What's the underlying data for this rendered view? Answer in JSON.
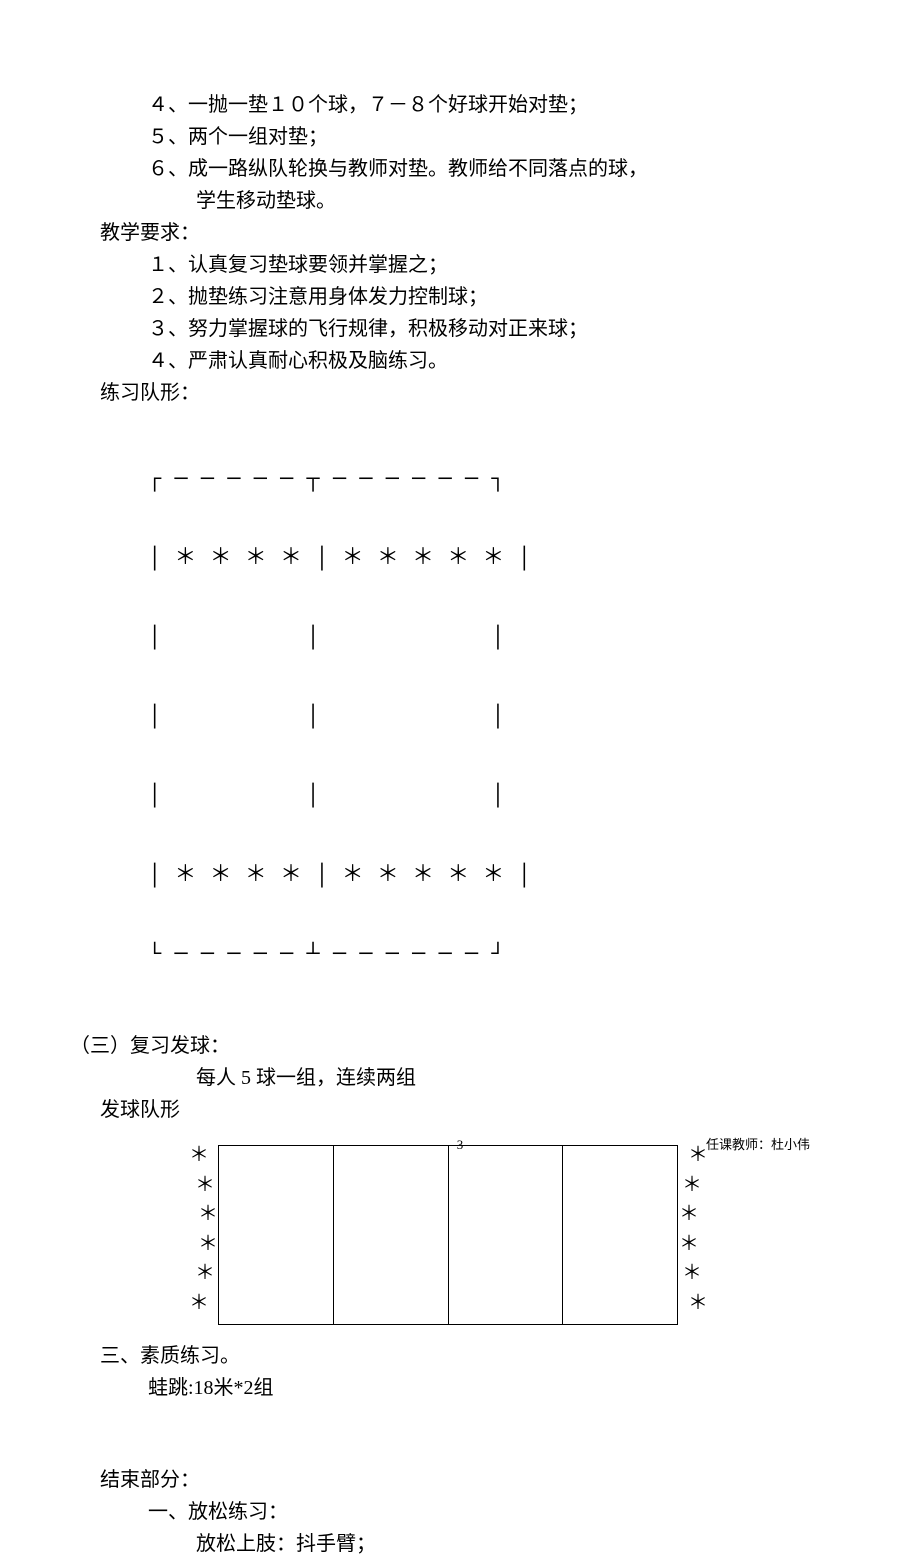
{
  "lines": {
    "l4": "４、一抛一垫１０个球，７－８个好球开始对垫；",
    "l5": "５、两个一组对垫；",
    "l6a": "６、成一路纵队轮换与教师对垫。教师给不同落点的球，",
    "l6b": "学生移动垫球。",
    "req_title": "教学要求：",
    "r1": "１、认真复习垫球要领并掌握之；",
    "r2": "２、抛垫练习注意用身体发力控制球；",
    "r3": "３、努力掌握球的飞行规律，积极移动对正来球；",
    "r4": "４、严肃认真耐心积极及脑练习。",
    "form_title": "练习队形：",
    "section3_title": "（三）复习发球：",
    "section3_sub": "每人 5 球一组，连续两组",
    "serve_form": "发球队形",
    "quality_title": "三、素质练习。",
    "quality_sub": "蛙跳:18米*2组",
    "end_title": "结束部分：",
    "relax_title": "一、放松练习：",
    "relax_sub": "放松上肢：抖手臂；",
    "page_num": "3",
    "teacher": "任课教师：杜小伟"
  },
  "diagram1": {
    "row1": "┌ ─ ─ ─ ─ ─ ┬ ─ ─ ─ ─ ─ ─ ┐",
    "row2": "│ ＊ ＊ ＊ ＊ │ ＊ ＊ ＊ ＊ ＊ │",
    "row3": "│           │             │",
    "row4": "│           │             │",
    "row5": "│           │             │",
    "row6": "│ ＊ ＊ ＊ ＊ │ ＊ ＊ ＊ ＊ ＊ │",
    "row7": "└ ─ ─ ─ ─ ─ ┴ ─ ─ ─ ─ ─ ─ ┘"
  },
  "diagram2": {
    "left_stars": [
      "＊",
      "＊",
      "＊",
      "＊",
      "＊",
      "＊"
    ],
    "right_stars": [
      "＊",
      "＊",
      "＊",
      "＊",
      "＊",
      "＊"
    ],
    "cols": 4
  },
  "colors": {
    "text": "#000000",
    "bg": "#ffffff"
  }
}
